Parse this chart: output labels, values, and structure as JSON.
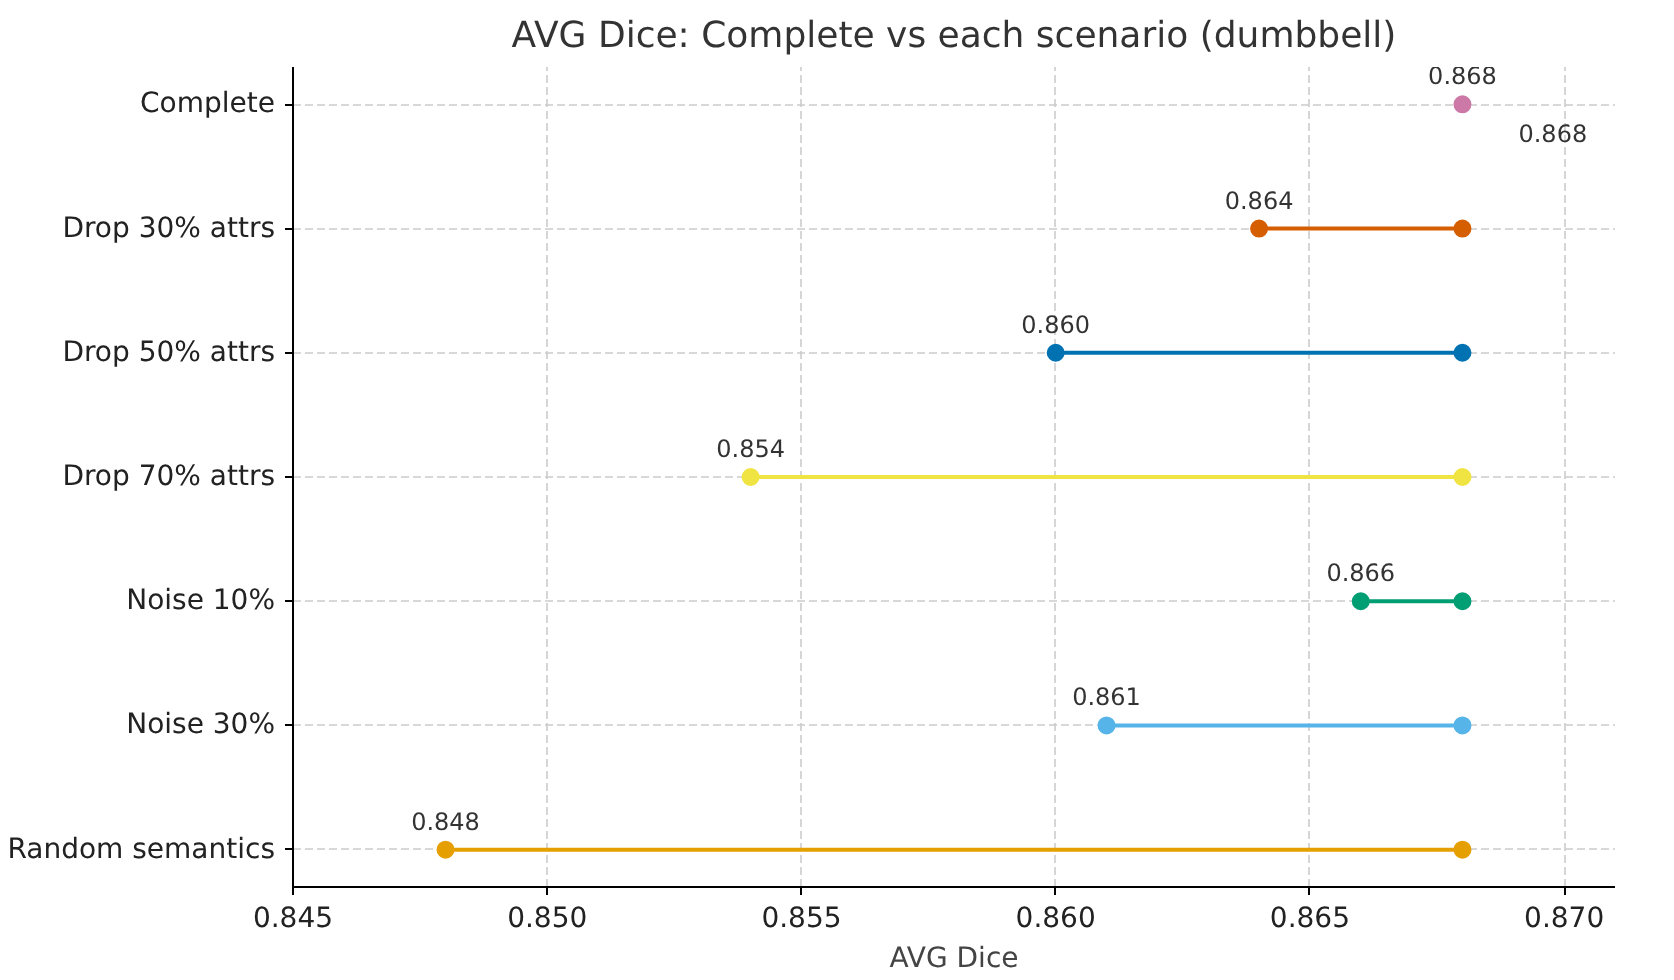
{
  "chart_data": {
    "type": "scatter",
    "orientation": "horizontal",
    "title": "AVG Dice: Complete vs each scenario (dumbbell)",
    "xlabel": "AVG Dice",
    "categories": [
      "Complete",
      "Drop 30% attrs",
      "Drop 50% attrs",
      "Drop 70% attrs",
      "Noise 10%",
      "Noise 30%",
      "Random semantics"
    ],
    "series": [
      {
        "values": [
          0.868,
          0.864,
          0.86,
          0.854,
          0.866,
          0.861,
          0.848
        ],
        "colors": [
          "#cc79a7",
          "#d55e00",
          "#0072b2",
          "#f0e442",
          "#009e73",
          "#56b4e9",
          "#e69f00"
        ],
        "value_labels": [
          "0.868",
          "0.864",
          "0.860",
          "0.854",
          "0.866",
          "0.861",
          "0.848"
        ]
      },
      {
        "values": [
          null,
          0.868,
          0.868,
          0.868,
          0.868,
          0.868,
          0.868
        ],
        "colors": [
          "#cc79a7",
          "#d55e00",
          "#0072b2",
          "#f0e442",
          "#009e73",
          "#56b4e9",
          "#e69f00"
        ]
      }
    ],
    "annotations": [
      {
        "text": "0.868",
        "x": 0.868,
        "y": "Complete"
      }
    ],
    "xlim": [
      0.845,
      0.871
    ],
    "xticks": [
      0.845,
      {
        "value": 0.85,
        "label": "0.850"
      },
      0.855,
      {
        "value": 0.86,
        "label": "0.860"
      },
      0.865,
      {
        "value": 0.87,
        "label": "0.870"
      }
    ],
    "grid": true,
    "marker": "circle"
  }
}
